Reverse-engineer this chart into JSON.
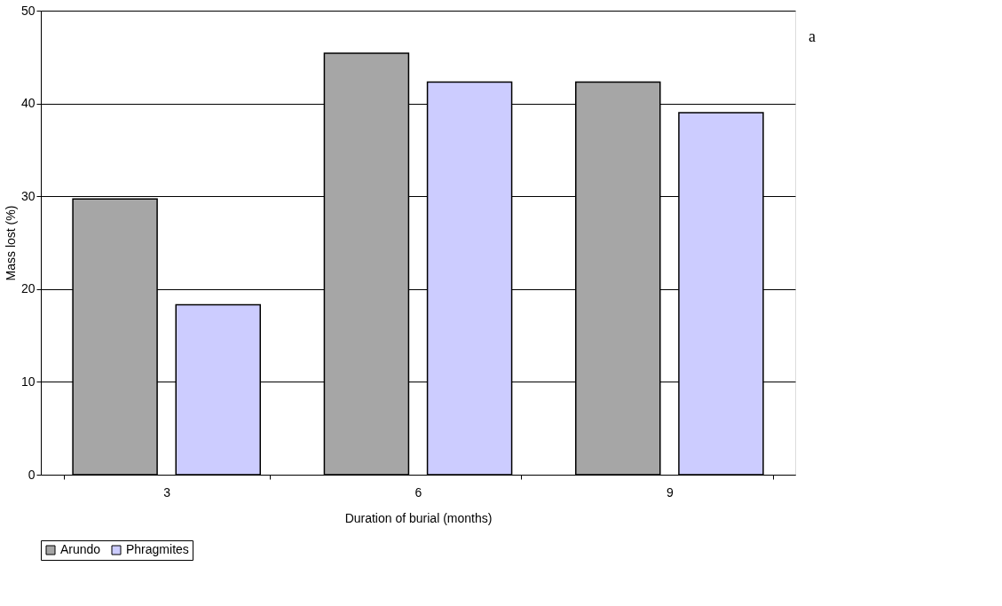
{
  "chart_data": {
    "type": "bar",
    "xlabel": "Duration of burial (months)",
    "ylabel": "Mass lost (%)",
    "categories": [
      "3",
      "6",
      "9"
    ],
    "series": [
      {
        "name": "Arundo",
        "color": "#a6a6a6",
        "values": [
          29.7,
          45.4,
          42.3
        ]
      },
      {
        "name": "Phragmites",
        "color": "#ccccff",
        "values": [
          18.3,
          42.3,
          39.0
        ]
      }
    ],
    "ylim": [
      0,
      50
    ],
    "yticks": [
      0,
      10,
      20,
      30,
      40,
      50
    ],
    "grid": "y",
    "legend": "bottom",
    "annotations": [
      "a"
    ]
  }
}
